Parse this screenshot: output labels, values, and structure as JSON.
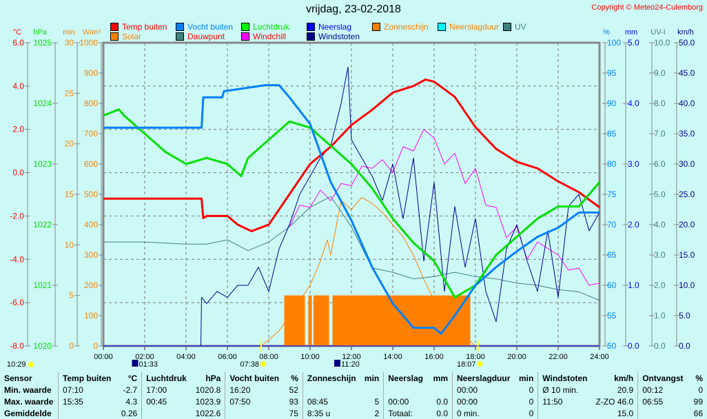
{
  "title": "vrijdag, 23-02-2018",
  "copyright": "Copyright © Meteo24-Culemborg",
  "legend": [
    {
      "label": "Temp buiten",
      "color": "#ff0000",
      "text_color": "#ff0000"
    },
    {
      "label": "Solar",
      "color": "#ff8000",
      "text_color": "#ff8000"
    },
    {
      "label": "Vocht buiten",
      "color": "#0080ff",
      "text_color": "#0080ff"
    },
    {
      "label": "Dauwpunt",
      "color": "#408080",
      "text_color": "#ff0000"
    },
    {
      "label": "Luchtdruk",
      "color": "#00ff00",
      "text_color": "#00e000"
    },
    {
      "label": "Windchill",
      "color": "#ff00ff",
      "text_color": "#ff0000"
    },
    {
      "label": "Neerslag",
      "color": "#0000ff",
      "text_color": "#0000ff"
    },
    {
      "label": "Windstoten",
      "color": "#000090",
      "text_color": "#000090"
    },
    {
      "label": "Zonneschijn",
      "color": "#ff8000",
      "text_color": "#ff8000"
    },
    {
      "label": "Neerslagduur",
      "color": "#00ffff",
      "text_color": "#ff8000"
    },
    {
      "label": "UV",
      "color": "#408080",
      "text_color": "#408080"
    }
  ],
  "chart_data": {
    "type": "line",
    "x_range": [
      "00:00",
      "24:00"
    ],
    "x_ticks": [
      "00:00",
      "02:00",
      "04:00",
      "06:00",
      "08:00",
      "10:00",
      "12:00",
      "14:00",
      "16:00",
      "18:00",
      "20:00",
      "22:00",
      "24:00"
    ],
    "grid": true,
    "axes": [
      {
        "id": "temp",
        "unit": "°C",
        "side": "left",
        "min": -8,
        "max": 6,
        "ticks": [
          "6.0",
          "4.0",
          "2.0",
          "0.0",
          "-2.0",
          "-4.0",
          "-6.0",
          "-8.0"
        ],
        "color": "#ff0000"
      },
      {
        "id": "press",
        "unit": "hPa",
        "side": "left",
        "min": 1020,
        "max": 1025,
        "ticks": [
          "1025",
          "1024",
          "1023",
          "1022",
          "1021",
          "1020"
        ],
        "color": "#00e000"
      },
      {
        "id": "min",
        "unit": "min",
        "side": "left",
        "min": 0,
        "max": 30,
        "ticks": [
          "30",
          "25",
          "20",
          "15",
          "10",
          "5",
          "0"
        ],
        "color": "#ff8000"
      },
      {
        "id": "solar",
        "unit": "W/m²",
        "side": "left",
        "min": 0,
        "max": 1000,
        "ticks": [
          "1000",
          "900",
          "800",
          "700",
          "600",
          "500",
          "400",
          "300",
          "200",
          "100",
          "0"
        ],
        "color": "#ff8000"
      },
      {
        "id": "hum",
        "unit": "%",
        "side": "right",
        "min": 50,
        "max": 100,
        "ticks": [
          "100",
          "95",
          "90",
          "85",
          "80",
          "75",
          "70",
          "65",
          "60",
          "55",
          "50"
        ],
        "color": "#0080ff"
      },
      {
        "id": "mm",
        "unit": "mm",
        "side": "right",
        "min": 0,
        "max": 5,
        "ticks": [
          "5.0",
          "4.0",
          "3.0",
          "2.0",
          "1.0",
          "0.0"
        ],
        "color": "#0000ff"
      },
      {
        "id": "uv",
        "unit": "UV-I",
        "side": "right",
        "min": 0,
        "max": 10,
        "ticks": [
          "10.0",
          "9.0",
          "8.0",
          "7.0",
          "6.0",
          "5.0",
          "4.0",
          "3.0",
          "2.0",
          "1.0",
          "0.0"
        ],
        "color": "#408080"
      },
      {
        "id": "wind",
        "unit": "km/h",
        "side": "right",
        "min": 0,
        "max": 50,
        "ticks": [
          "50.0",
          "45.0",
          "40.0",
          "35.0",
          "30.0",
          "25.0",
          "20.0",
          "15.0",
          "10.0",
          "5.0",
          "0.0"
        ],
        "color": "#000090"
      }
    ],
    "series": [
      {
        "name": "Zonneschijn",
        "axis": "min",
        "kind": "bars",
        "color": "#ff8000",
        "intervals": [
          [
            "08:45",
            "09:45",
            5
          ],
          [
            "09:55",
            "10:05",
            5
          ],
          [
            "10:10",
            "10:55",
            5
          ],
          [
            "11:05",
            "17:45",
            5
          ]
        ]
      },
      {
        "name": "Solar",
        "axis": "solar",
        "color": "#ff8000",
        "points": [
          [
            "07:38",
            0
          ],
          [
            "08:00",
            20
          ],
          [
            "08:30",
            50
          ],
          [
            "09:00",
            100
          ],
          [
            "09:30",
            150
          ],
          [
            "10:00",
            200
          ],
          [
            "10:30",
            280
          ],
          [
            "10:50",
            350
          ],
          [
            "11:00",
            300
          ],
          [
            "11:30",
            480
          ],
          [
            "12:00",
            450
          ],
          [
            "12:30",
            490
          ],
          [
            "13:00",
            470
          ],
          [
            "13:30",
            440
          ],
          [
            "14:00",
            400
          ],
          [
            "14:30",
            360
          ],
          [
            "15:00",
            300
          ],
          [
            "15:30",
            220
          ],
          [
            "16:00",
            150
          ],
          [
            "16:30",
            110
          ],
          [
            "17:00",
            70
          ],
          [
            "17:30",
            30
          ],
          [
            "18:00",
            0
          ]
        ]
      },
      {
        "name": "Dauwpunt",
        "axis": "temp",
        "color": "#408080",
        "points": [
          [
            "00:00",
            -3.2
          ],
          [
            "02:00",
            -3.2
          ],
          [
            "04:00",
            -3.3
          ],
          [
            "05:00",
            -3.3
          ],
          [
            "06:00",
            -3.1
          ],
          [
            "07:00",
            -3.6
          ],
          [
            "08:00",
            -3.2
          ],
          [
            "09:00",
            -2.5
          ],
          [
            "10:00",
            -1.6
          ],
          [
            "11:00",
            -1.1
          ],
          [
            "12:00",
            -2.5
          ],
          [
            "13:00",
            -4.4
          ],
          [
            "14:00",
            -4.6
          ],
          [
            "15:00",
            -4.9
          ],
          [
            "16:00",
            -4.8
          ],
          [
            "17:00",
            -4.6
          ],
          [
            "18:00",
            -4.8
          ],
          [
            "19:00",
            -4.9
          ],
          [
            "20:00",
            -5.1
          ],
          [
            "21:00",
            -5.2
          ],
          [
            "22:00",
            -5.4
          ],
          [
            "23:00",
            -5.5
          ],
          [
            "24:00",
            -5.9
          ]
        ]
      },
      {
        "name": "Windchill",
        "axis": "temp",
        "color": "#ff00ff",
        "points": [
          [
            "09:00",
            -2.5
          ],
          [
            "09:30",
            -1.5
          ],
          [
            "10:00",
            -1.6
          ],
          [
            "10:30",
            -0.8
          ],
          [
            "11:00",
            -1.3
          ],
          [
            "11:30",
            -0.5
          ],
          [
            "12:00",
            -0.6
          ],
          [
            "12:30",
            0.3
          ],
          [
            "13:00",
            0.2
          ],
          [
            "13:30",
            0.6
          ],
          [
            "14:00",
            0.0
          ],
          [
            "14:30",
            1.2
          ],
          [
            "15:00",
            1.0
          ],
          [
            "15:30",
            2.0
          ],
          [
            "16:00",
            1.6
          ],
          [
            "16:30",
            0.4
          ],
          [
            "17:00",
            0.9
          ],
          [
            "17:30",
            -0.5
          ],
          [
            "18:00",
            0.2
          ],
          [
            "18:30",
            -1.5
          ],
          [
            "19:00",
            -1.6
          ],
          [
            "19:30",
            -3.0
          ],
          [
            "20:00",
            -2.5
          ],
          [
            "20:30",
            -4.0
          ],
          [
            "21:00",
            -3.2
          ],
          [
            "21:30",
            -3.5
          ],
          [
            "22:00",
            -3.8
          ],
          [
            "22:30",
            -4.5
          ],
          [
            "23:00",
            -4.4
          ],
          [
            "23:30",
            -5.2
          ],
          [
            "24:00",
            -5.1
          ]
        ]
      },
      {
        "name": "Windstoten",
        "axis": "wind",
        "color": "#000090",
        "width": 1,
        "points": [
          [
            "04:43",
            0
          ],
          [
            "04:45",
            8
          ],
          [
            "05:00",
            7
          ],
          [
            "05:30",
            9
          ],
          [
            "06:00",
            8
          ],
          [
            "06:30",
            10
          ],
          [
            "07:00",
            10
          ],
          [
            "07:30",
            13
          ],
          [
            "08:00",
            9
          ],
          [
            "08:30",
            16
          ],
          [
            "09:00",
            20
          ],
          [
            "09:30",
            25
          ],
          [
            "10:00",
            28
          ],
          [
            "10:30",
            31
          ],
          [
            "11:00",
            33
          ],
          [
            "11:30",
            40
          ],
          [
            "11:50",
            46
          ],
          [
            "12:00",
            34
          ],
          [
            "12:30",
            31
          ],
          [
            "13:00",
            28
          ],
          [
            "13:30",
            24
          ],
          [
            "14:00",
            30
          ],
          [
            "14:30",
            21
          ],
          [
            "15:00",
            31
          ],
          [
            "15:30",
            14
          ],
          [
            "16:00",
            27
          ],
          [
            "16:30",
            9
          ],
          [
            "17:00",
            23
          ],
          [
            "17:30",
            13
          ],
          [
            "18:00",
            21
          ],
          [
            "18:30",
            9
          ],
          [
            "19:00",
            4
          ],
          [
            "19:30",
            16
          ],
          [
            "20:00",
            20
          ],
          [
            "20:30",
            14
          ],
          [
            "21:00",
            9
          ],
          [
            "21:30",
            19
          ],
          [
            "22:00",
            8
          ],
          [
            "22:30",
            23
          ],
          [
            "23:00",
            25
          ],
          [
            "23:30",
            19
          ],
          [
            "24:00",
            22
          ]
        ]
      },
      {
        "name": "Temp buiten",
        "axis": "temp",
        "color": "#ff0000",
        "width": 3,
        "points": [
          [
            "00:00",
            -1.2
          ],
          [
            "04:45",
            -1.2
          ],
          [
            "04:50",
            -2.1
          ],
          [
            "05:00",
            -2.0
          ],
          [
            "06:00",
            -2.0
          ],
          [
            "06:30",
            -2.4
          ],
          [
            "07:10",
            -2.7
          ],
          [
            "08:00",
            -2.4
          ],
          [
            "09:00",
            -1.0
          ],
          [
            "10:00",
            0.4
          ],
          [
            "11:00",
            1.2
          ],
          [
            "12:00",
            2.2
          ],
          [
            "13:00",
            2.9
          ],
          [
            "14:00",
            3.7
          ],
          [
            "15:00",
            4.0
          ],
          [
            "15:35",
            4.3
          ],
          [
            "16:00",
            4.2
          ],
          [
            "17:00",
            3.5
          ],
          [
            "18:00",
            2.1
          ],
          [
            "19:00",
            1.1
          ],
          [
            "20:00",
            0.5
          ],
          [
            "21:00",
            0.2
          ],
          [
            "22:00",
            -0.4
          ],
          [
            "23:00",
            -0.9
          ],
          [
            "24:00",
            -1.6
          ]
        ]
      },
      {
        "name": "Luchtdruk",
        "axis": "press",
        "color": "#00e000",
        "width": 3,
        "points": [
          [
            "00:00",
            1023.8
          ],
          [
            "00:45",
            1023.9
          ],
          [
            "01:00",
            1023.8
          ],
          [
            "02:00",
            1023.5
          ],
          [
            "03:00",
            1023.2
          ],
          [
            "04:00",
            1023.0
          ],
          [
            "05:00",
            1023.1
          ],
          [
            "06:00",
            1023.0
          ],
          [
            "06:40",
            1022.8
          ],
          [
            "07:00",
            1023.1
          ],
          [
            "08:00",
            1023.4
          ],
          [
            "09:00",
            1023.7
          ],
          [
            "10:00",
            1023.6
          ],
          [
            "11:00",
            1023.3
          ],
          [
            "12:00",
            1023.0
          ],
          [
            "13:00",
            1022.6
          ],
          [
            "14:00",
            1022.1
          ],
          [
            "15:00",
            1021.7
          ],
          [
            "16:00",
            1021.4
          ],
          [
            "17:00",
            1020.8
          ],
          [
            "18:00",
            1021.0
          ],
          [
            "19:00",
            1021.5
          ],
          [
            "20:00",
            1021.8
          ],
          [
            "21:00",
            1022.1
          ],
          [
            "22:00",
            1022.3
          ],
          [
            "23:00",
            1022.3
          ],
          [
            "24:00",
            1022.7
          ]
        ]
      },
      {
        "name": "Vocht buiten",
        "axis": "hum",
        "color": "#0080ff",
        "width": 3,
        "points": [
          [
            "00:00",
            86
          ],
          [
            "04:45",
            86
          ],
          [
            "04:50",
            91
          ],
          [
            "05:45",
            91
          ],
          [
            "05:50",
            92
          ],
          [
            "07:50",
            93
          ],
          [
            "08:30",
            93
          ],
          [
            "09:00",
            91
          ],
          [
            "10:00",
            86.6
          ],
          [
            "11:00",
            77
          ],
          [
            "12:00",
            70.7
          ],
          [
            "13:00",
            63
          ],
          [
            "14:00",
            57
          ],
          [
            "15:00",
            53
          ],
          [
            "16:00",
            53
          ],
          [
            "16:20",
            52
          ],
          [
            "17:00",
            55
          ],
          [
            "18:00",
            60
          ],
          [
            "19:00",
            63
          ],
          [
            "20:00",
            65.6
          ],
          [
            "21:00",
            68
          ],
          [
            "22:00",
            69.5
          ],
          [
            "23:00",
            72
          ],
          [
            "24:00",
            72
          ]
        ]
      },
      {
        "name": "Neerslag",
        "axis": "mm",
        "color": "#0000ff",
        "points": [
          [
            "00:00",
            0
          ],
          [
            "24:00",
            0
          ]
        ]
      }
    ]
  },
  "markers": [
    {
      "time": "10:29",
      "icon": "moon-icon",
      "row": "left"
    },
    {
      "time": "01:33",
      "icon": "moon-phase-icon",
      "row": "upper"
    },
    {
      "time": "07:38",
      "icon": "sunrise-icon",
      "row": "upper"
    },
    {
      "time": "11:20",
      "icon": "moon-phase-icon",
      "row": "upper"
    },
    {
      "time": "18:07",
      "icon": "sunset-icon",
      "row": "upper"
    }
  ],
  "table": {
    "rows": [
      [
        "Sensor",
        "Temp buiten",
        "°C",
        "Luchtdruk",
        "hPa",
        "Vocht buiten",
        "%",
        "Zonneschijn",
        "min",
        "Neerslag",
        "mm",
        "Neerslagduur",
        "min",
        "Windstoten",
        "km/h",
        "Ontvangst",
        "%"
      ],
      [
        "Min. waarde",
        "07:10",
        "-2.7",
        "17:00",
        "1020.8",
        "16:20",
        "52",
        "",
        "",
        "",
        "",
        "00:00",
        "0",
        "Ø 10 min.",
        "20.9",
        "00:12",
        "0"
      ],
      [
        "Max. waarde",
        "15:35",
        "4.3",
        "00:45",
        "1023.9",
        "07:50",
        "93",
        "08:45",
        "5",
        "00:00",
        "0.0",
        "00:00",
        "0",
        "11:50",
        "Z-ZO 46.0",
        "06:55",
        "99"
      ],
      [
        "Gemiddelde",
        "",
        "0.26",
        "",
        "1022.6",
        "",
        "75",
        "8:35 u",
        "2",
        "Totaal:",
        "0.0",
        "0 min.",
        "0",
        "",
        "15.0",
        "",
        "66"
      ]
    ]
  }
}
